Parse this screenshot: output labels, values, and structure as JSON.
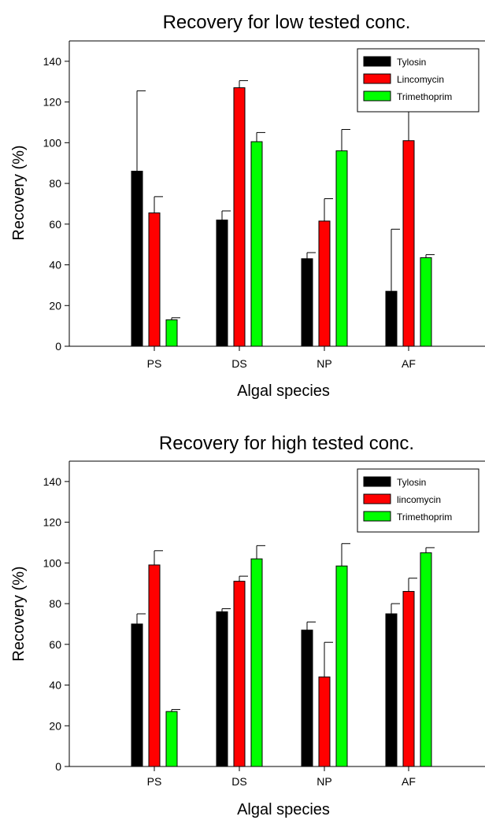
{
  "chart_data": [
    {
      "type": "bar",
      "title": "Recovery for low tested conc.",
      "xlabel": "Algal species",
      "ylabel": "Recovery (%)",
      "ylim": [
        0,
        150
      ],
      "yticks": [
        0,
        20,
        40,
        60,
        80,
        100,
        120,
        140
      ],
      "categories": [
        "PS",
        "DS",
        "NP",
        "AF"
      ],
      "legend_position": "top-right",
      "series": [
        {
          "name": "Tylosin",
          "color": "#000000",
          "values": [
            86,
            62,
            43,
            27
          ],
          "errors": [
            39.5,
            4.5,
            3,
            30.5
          ]
        },
        {
          "name": "Lincomycin",
          "color": "#ff0000",
          "values": [
            65.5,
            127,
            61.5,
            101
          ],
          "errors": [
            8,
            3.5,
            11,
            14.5
          ]
        },
        {
          "name": "Trimethoprim",
          "color": "#00ff00",
          "values": [
            13,
            100.5,
            96,
            43.5
          ],
          "errors": [
            1,
            4.5,
            10.5,
            1.5
          ]
        }
      ]
    },
    {
      "type": "bar",
      "title": "Recovery for high tested conc.",
      "xlabel": "Algal species",
      "ylabel": "Recovery (%)",
      "ylim": [
        0,
        150
      ],
      "yticks": [
        0,
        20,
        40,
        60,
        80,
        100,
        120,
        140
      ],
      "categories": [
        "PS",
        "DS",
        "NP",
        "AF"
      ],
      "legend_position": "top-right",
      "series": [
        {
          "name": "Tylosin",
          "color": "#000000",
          "values": [
            70,
            76,
            67,
            75
          ],
          "errors": [
            5,
            1.5,
            4,
            5
          ]
        },
        {
          "name": "lincomycin",
          "color": "#ff0000",
          "values": [
            99,
            91,
            44,
            86
          ],
          "errors": [
            7,
            2.5,
            17,
            6.5
          ]
        },
        {
          "name": "Trimethoprim",
          "color": "#00ff00",
          "values": [
            27,
            102,
            98.5,
            105
          ],
          "errors": [
            1,
            6.5,
            11,
            2.5
          ]
        }
      ]
    }
  ]
}
